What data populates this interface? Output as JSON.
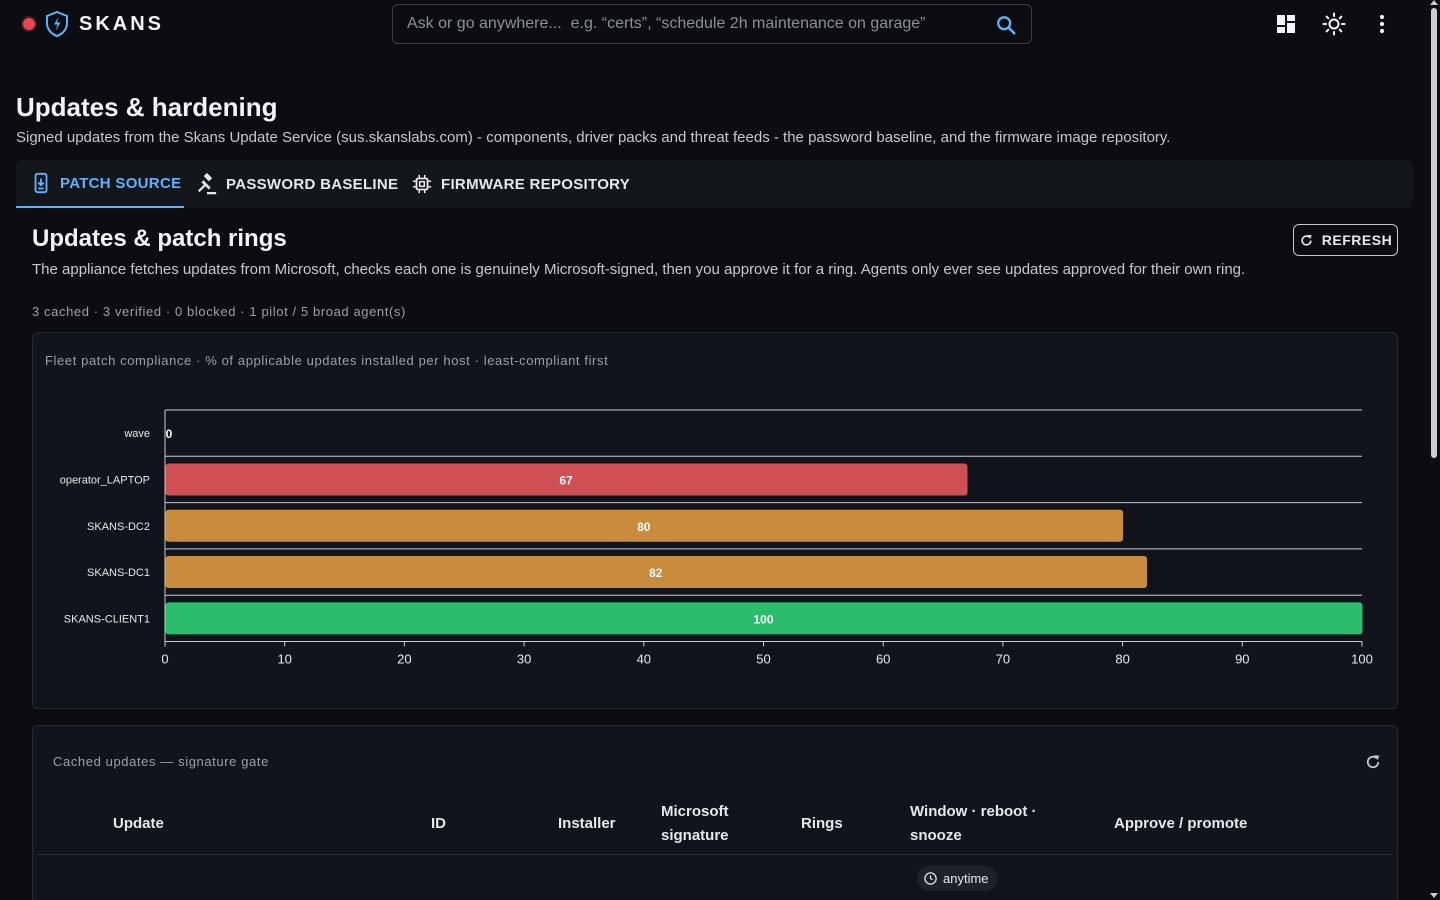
{
  "app": {
    "name": "SKANS",
    "search_placeholder": "Ask or go anywhere...  e.g. “certs”, “schedule 2h maintenance on garage”"
  },
  "icons": {
    "status": "status-dot-icon",
    "logo": "shield-bolt-icon",
    "search": "search-icon",
    "dashboard": "dashboard-grid-icon",
    "theme": "sun-icon",
    "more": "more-vertical-icon"
  },
  "colors": {
    "accent": "#5cb3ff",
    "status_red": "#e5484d",
    "bar_red": "#d04f55",
    "bar_amber": "#c98c3c",
    "bar_green": "#2bbd6e"
  },
  "page": {
    "title": "Updates & hardening",
    "subtitle": "Signed updates from the Skans Update Service (sus.skanslabs.com) - components, driver packs and threat feeds - the password baseline, and the firmware image repository."
  },
  "tabs": [
    {
      "label": "PATCH SOURCE",
      "icon": "phone-download-icon",
      "active": true
    },
    {
      "label": "PASSWORD BASELINE",
      "icon": "gavel-icon",
      "active": false
    },
    {
      "label": "FIRMWARE REPOSITORY",
      "icon": "chip-icon",
      "active": false
    }
  ],
  "section": {
    "title": "Updates & patch rings",
    "refresh_label": "REFRESH",
    "description": "The appliance fetches updates from Microsoft, checks each one is genuinely Microsoft-signed, then you approve it for a ring. Agents only ever see updates approved for their own ring.",
    "stats": "3 cached · 3 verified · 0 blocked · 1 pilot / 5 broad agent(s)"
  },
  "chart_data": {
    "type": "bar",
    "orientation": "horizontal",
    "title": "Fleet patch compliance · % of applicable updates installed per host · least-compliant first",
    "categories": [
      "wave",
      "operator_LAPTOP",
      "SKANS-DC2",
      "SKANS-DC1",
      "SKANS-CLIENT1"
    ],
    "values": [
      0,
      67,
      80,
      82,
      100
    ],
    "bar_colors": [
      "#2bbd6e",
      "#d04f55",
      "#c98c3c",
      "#c98c3c",
      "#2bbd6e"
    ],
    "xlim": [
      0,
      100
    ],
    "xticks": [
      0,
      10,
      20,
      30,
      40,
      50,
      60,
      70,
      80,
      90,
      100
    ],
    "data_labels": true,
    "grid": true,
    "xlabel": "",
    "ylabel": ""
  },
  "table": {
    "caption": "Cached updates — signature gate",
    "columns": [
      "Update",
      "ID",
      "Installer",
      "Microsoft signature",
      "Rings",
      "Window · reboot · snooze",
      "Approve / promote"
    ],
    "rows": [
      {
        "window": "anytime"
      }
    ]
  }
}
